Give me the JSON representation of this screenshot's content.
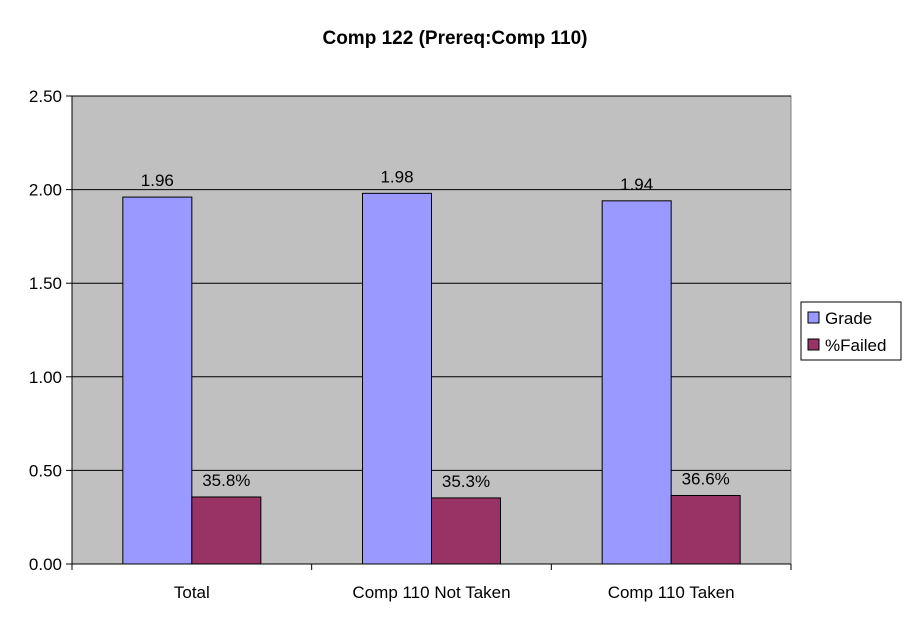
{
  "chart_data": {
    "type": "bar",
    "title": "Comp 122 (Prereq:Comp 110)",
    "xlabel": "",
    "ylabel": "",
    "categories": [
      "Total",
      "Comp 110 Not Taken",
      "Comp 110 Taken"
    ],
    "ylim": [
      0,
      2.5
    ],
    "yticks": [
      "0.00",
      "0.50",
      "1.00",
      "1.50",
      "2.00",
      "2.50"
    ],
    "grid": true,
    "legend_position": "right",
    "plot_background": "#c0c0c0",
    "series": [
      {
        "name": "Grade",
        "color": "#9999ff",
        "values": [
          1.96,
          1.98,
          1.94
        ],
        "labels": [
          "1.96",
          "1.98",
          "1.94"
        ]
      },
      {
        "name": "%Failed",
        "color": "#993366",
        "values": [
          0.358,
          0.353,
          0.366
        ],
        "labels": [
          "35.8%",
          "35.3%",
          "36.6%"
        ]
      }
    ]
  }
}
